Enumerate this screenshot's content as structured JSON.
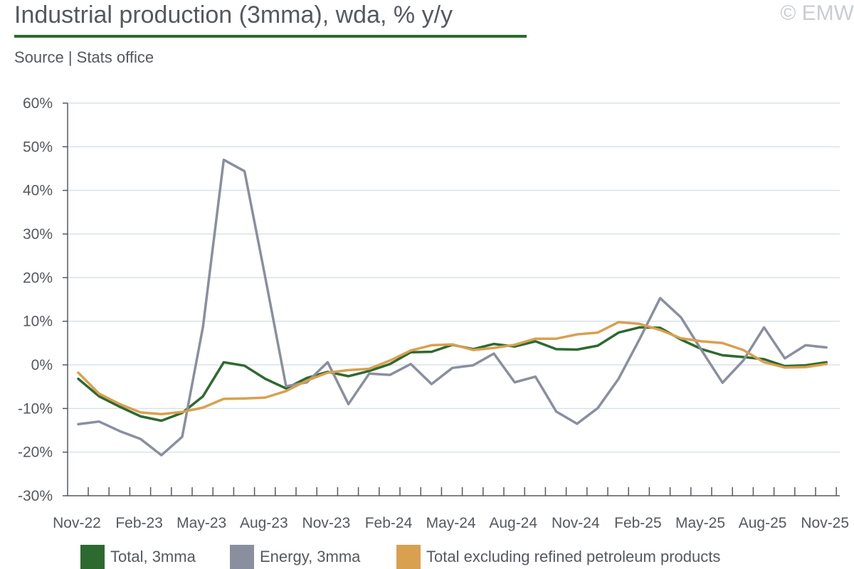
{
  "header": {
    "title": "Industrial production (3mma), wda, % y/y",
    "source": "Source | Stats office",
    "watermark": "© EMW"
  },
  "colors": {
    "total": "#2d6a2f",
    "energy": "#8a8f9f",
    "excl": "#d9a04f",
    "grid": "#d8e2e8",
    "axis": "#55595f",
    "title_rule": "#2d6a2f"
  },
  "chart_data": {
    "type": "line",
    "title": "Industrial production (3mma), wda, % y/y",
    "xlabel": "",
    "ylabel": "",
    "ylim": [
      -30,
      60
    ],
    "ytick_step": 10,
    "ytick_labels": [
      "60%",
      "50%",
      "40%",
      "30%",
      "20%",
      "10%",
      "0%",
      "-10%",
      "-20%",
      "-30%"
    ],
    "x": [
      "Nov-22",
      "Dec-22",
      "Jan-23",
      "Feb-23",
      "Mar-23",
      "Apr-23",
      "May-23",
      "Jun-23",
      "Jul-23",
      "Aug-23",
      "Sep-23",
      "Oct-23",
      "Nov-23",
      "Dec-23",
      "Jan-24",
      "Feb-24",
      "Mar-24",
      "Apr-24",
      "May-24",
      "Jun-24",
      "Jul-24",
      "Aug-24",
      "Sep-24",
      "Oct-24",
      "Nov-24",
      "Dec-24",
      "Jan-25",
      "Feb-25",
      "Mar-25",
      "Apr-25",
      "May-25",
      "Jun-25",
      "Jul-25",
      "Aug-25",
      "Sep-25",
      "Oct-25",
      "Nov-25"
    ],
    "xtick_labels": [
      "Nov-22",
      "Feb-23",
      "May-23",
      "Aug-23",
      "Nov-23",
      "Feb-24",
      "May-24",
      "Aug-24",
      "Nov-24",
      "Feb-25",
      "May-25",
      "Aug-25",
      "Nov-25"
    ],
    "xtick_every": 3,
    "grid": true,
    "legend_position": "bottom",
    "series": [
      {
        "key": "total",
        "name": "Total, 3mma",
        "values": [
          -3.2,
          -7.2,
          -9.6,
          -11.8,
          -12.8,
          -11.0,
          -7.2,
          0.6,
          -0.2,
          -3.2,
          -5.4,
          -3.0,
          -1.6,
          -2.6,
          -1.4,
          0.2,
          2.9,
          3.0,
          4.6,
          3.6,
          4.8,
          4.2,
          5.4,
          3.6,
          3.5,
          4.4,
          7.4,
          8.6,
          8.5,
          5.8,
          3.6,
          2.2,
          1.8,
          1.3,
          -0.3,
          -0.1,
          0.6
        ]
      },
      {
        "key": "energy",
        "name": "Energy, 3mma",
        "values": [
          -13.6,
          -13.0,
          -15.2,
          -17.0,
          -20.7,
          -16.5,
          8.7,
          47.0,
          44.4,
          20.0,
          -4.9,
          -4.0,
          0.6,
          -9.0,
          -2.0,
          -2.3,
          0.2,
          -4.4,
          -0.7,
          -0.1,
          2.6,
          -4.0,
          -2.7,
          -10.7,
          -13.5,
          -9.9,
          -3.2,
          5.8,
          15.3,
          10.9,
          3.3,
          -4.1,
          1.0,
          8.6,
          1.5,
          4.5,
          4.0
        ]
      },
      {
        "key": "excl",
        "name": "Total excluding refined petroleum products",
        "values": [
          -1.8,
          -6.6,
          -9.0,
          -10.9,
          -11.3,
          -10.8,
          -9.8,
          -7.8,
          -7.7,
          -7.5,
          -6.0,
          -3.6,
          -1.8,
          -1.2,
          -0.9,
          1.0,
          3.3,
          4.5,
          4.7,
          3.4,
          3.9,
          4.6,
          6.0,
          6.0,
          7.0,
          7.4,
          9.8,
          9.4,
          8.0,
          6.1,
          5.4,
          5.0,
          3.4,
          0.6,
          -0.6,
          -0.5,
          0.2
        ]
      }
    ]
  }
}
